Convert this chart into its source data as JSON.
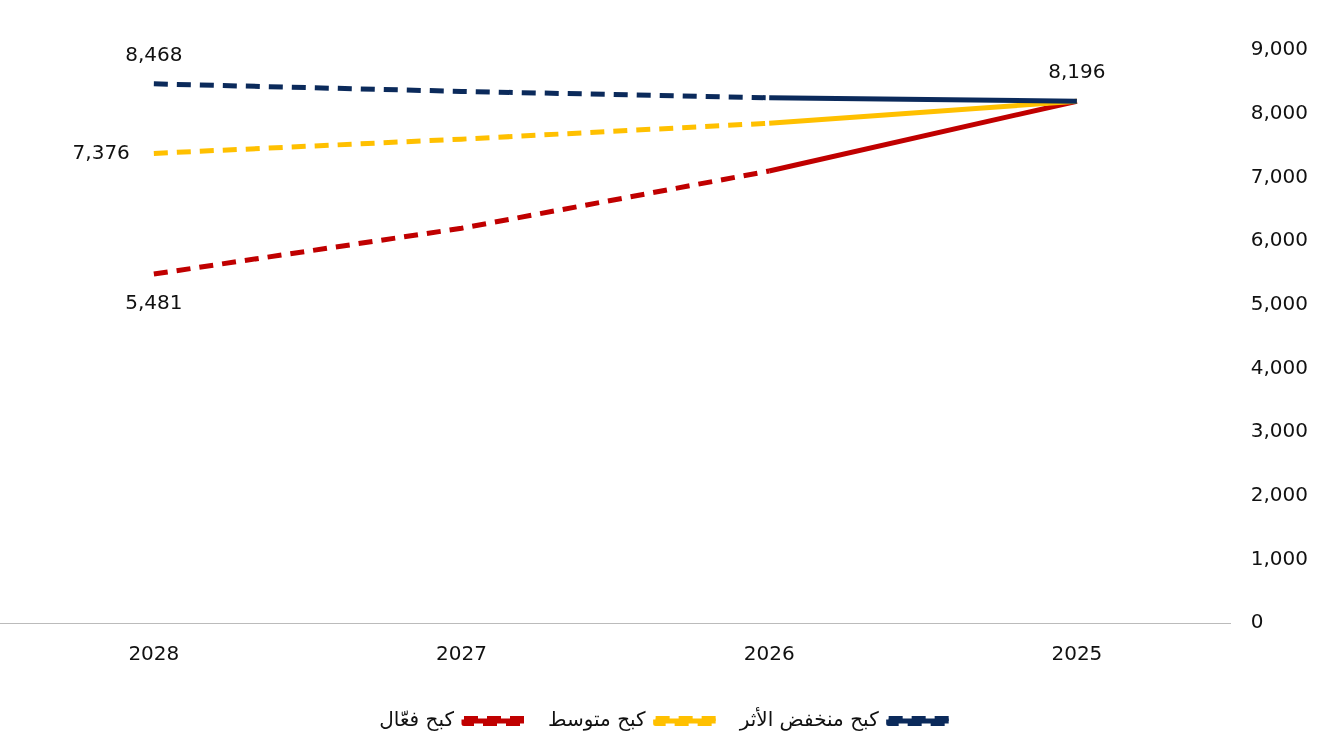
{
  "chart_data": {
    "type": "line",
    "categories": [
      "2028",
      "2027",
      "2026",
      "2025"
    ],
    "series": [
      {
        "name": "كبح منخفض الأثر",
        "color": "#0b2a5b",
        "line_style": "dashed",
        "values": [
          8468,
          8350,
          8250,
          null
        ],
        "value_labels": [
          "8,468",
          null,
          null,
          null
        ]
      },
      {
        "color": "#0b2a5b",
        "line_style": "solid",
        "values": [
          null,
          null,
          8250,
          8196
        ],
        "value_labels": [
          null,
          null,
          null,
          "8,196"
        ]
      },
      {
        "name": "كبح متوسط",
        "color": "#ffc000",
        "line_style": "dashed",
        "values": [
          7376,
          7600,
          7850,
          null
        ],
        "value_labels": [
          "7,376",
          null,
          null,
          null
        ]
      },
      {
        "color": "#ffc000",
        "line_style": "solid",
        "values": [
          null,
          null,
          7850,
          8196
        ]
      },
      {
        "name": "كبح فعّال",
        "color": "#c00000",
        "line_style": "dashed",
        "values": [
          5481,
          6200,
          7100,
          null
        ],
        "value_labels": [
          "5,481",
          null,
          null,
          null
        ]
      },
      {
        "color": "#c00000",
        "line_style": "solid",
        "values": [
          null,
          null,
          7100,
          8196
        ]
      }
    ],
    "ylim": [
      0,
      9000
    ],
    "yticks": [
      {
        "value": 0,
        "label": "0"
      },
      {
        "value": 1000,
        "label": "1,000"
      },
      {
        "value": 2000,
        "label": "2,000"
      },
      {
        "value": 3000,
        "label": "3,000"
      },
      {
        "value": 4000,
        "label": "4,000"
      },
      {
        "value": 5000,
        "label": "5,000"
      },
      {
        "value": 6000,
        "label": "6,000"
      },
      {
        "value": 7000,
        "label": "7,000"
      },
      {
        "value": 8000,
        "label": "8,000"
      },
      {
        "value": 9000,
        "label": "9,000"
      }
    ],
    "grid": false,
    "legend": "bottom",
    "marker": "none"
  }
}
